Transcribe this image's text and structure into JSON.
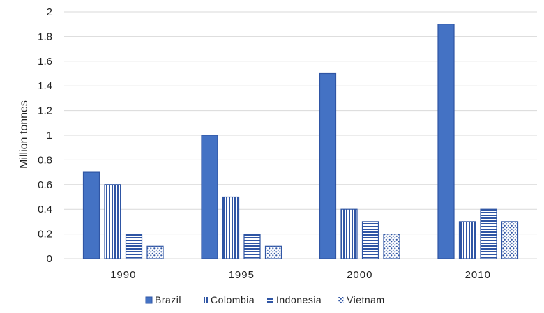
{
  "chart_data": {
    "type": "bar",
    "title": "",
    "xlabel": "",
    "ylabel": "Million tonnes",
    "categories": [
      "1990",
      "1995",
      "2000",
      "2010"
    ],
    "ylim": [
      0,
      2
    ],
    "yticks": [
      0,
      0.2,
      0.4,
      0.6,
      0.8,
      1,
      1.2,
      1.4,
      1.6,
      1.8,
      2
    ],
    "ytick_labels": [
      "0",
      "0.2",
      "0.4",
      "0.6",
      "0.8",
      "1",
      "1.2",
      "1.4",
      "1.6",
      "1.8",
      "2"
    ],
    "grid": true,
    "legend_position": "bottom",
    "series": [
      {
        "name": "Brazil",
        "values": [
          0.7,
          1.0,
          1.5,
          1.9
        ],
        "pattern": "solid",
        "color": "#4472C4"
      },
      {
        "name": "Colombia",
        "values": [
          0.6,
          0.5,
          0.4,
          0.3
        ],
        "pattern": "vertical-lines",
        "color": "#2F55A4"
      },
      {
        "name": "Indonesia",
        "values": [
          0.2,
          0.2,
          0.3,
          0.4
        ],
        "pattern": "horizontal-lines",
        "color": "#2F55A4"
      },
      {
        "name": "Vietnam",
        "values": [
          0.1,
          0.1,
          0.2,
          0.3
        ],
        "pattern": "dots",
        "color": "#2F55A4"
      }
    ]
  }
}
